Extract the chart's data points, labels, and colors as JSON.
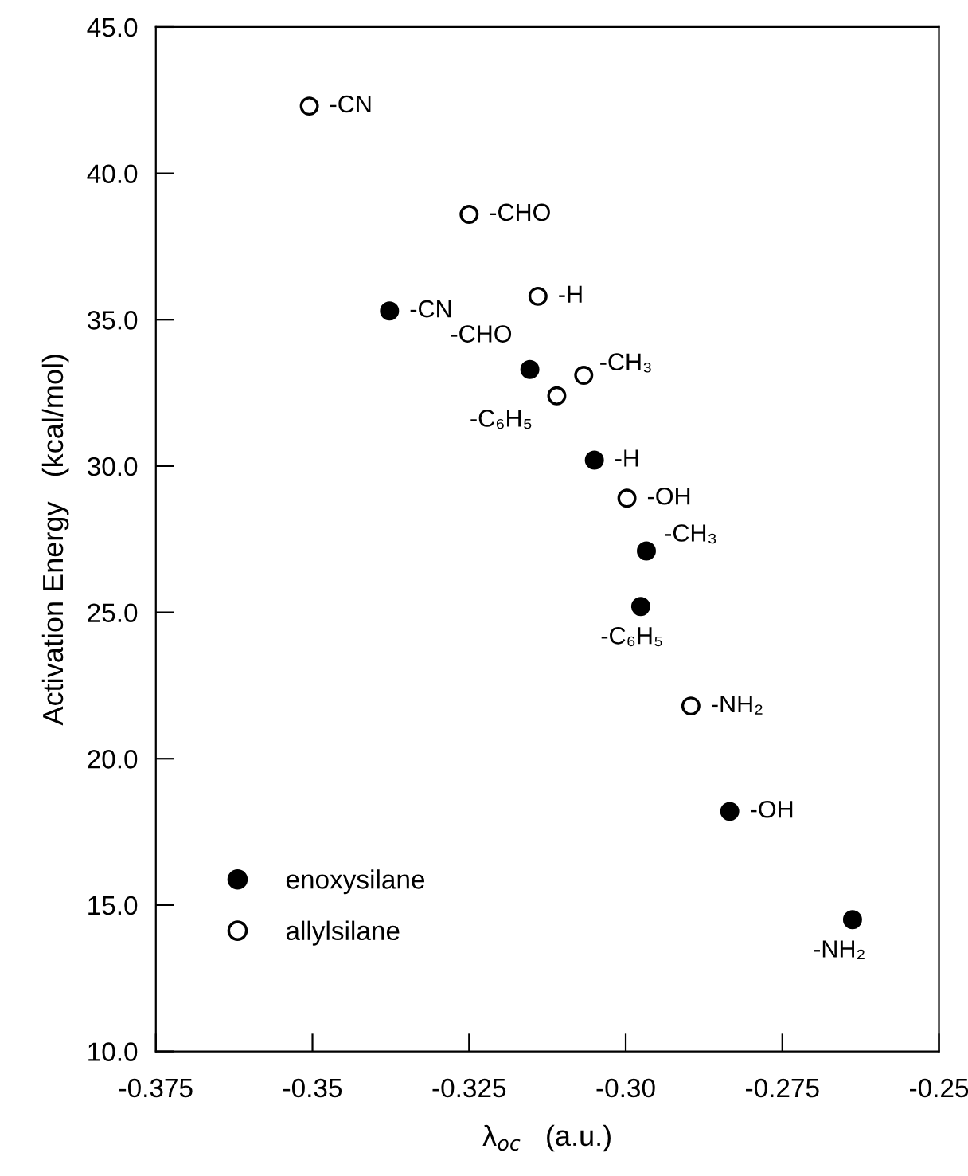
{
  "chart_data": {
    "type": "scatter",
    "xlabel": "λ$_{oc}$   (a.u.)",
    "ylabel": "Activation Energy   (kcal/mol)",
    "series": [
      {
        "name": "enoxysilane",
        "color": "#000000",
        "x": [
          -0.3377,
          -0.3153,
          -0.305,
          -0.2967,
          -0.2976,
          -0.2834,
          -0.2638
        ],
        "values": [
          35.3,
          33.3,
          30.2,
          27.1,
          25.2,
          18.2,
          14.5
        ]
      },
      {
        "name": "allylsilane",
        "color": "#ffffff",
        "x": [
          -0.3505,
          -0.325,
          -0.314,
          -0.3067,
          -0.311,
          -0.2998,
          -0.2896
        ],
        "values": [
          42.3,
          38.6,
          35.8,
          33.1,
          32.4,
          28.9,
          21.8
        ]
      }
    ],
    "annotations": [
      {
        "text": "-CN",
        "x": -0.3377,
        "y": 35.3
      },
      {
        "text": "-CHO",
        "x": -0.3153,
        "y": 33.3
      },
      {
        "text": "-H",
        "x": -0.305,
        "y": 30.2
      },
      {
        "text": "-CH₃",
        "x": -0.2967,
        "y": 27.1
      },
      {
        "text": "-C₆H₅",
        "x": -0.2976,
        "y": 25.2
      },
      {
        "text": "-OH",
        "x": -0.2834,
        "y": 18.2
      },
      {
        "text": "-NH₂",
        "x": -0.2638,
        "y": 14.5
      },
      {
        "text": "-CN",
        "x": -0.3505,
        "y": 42.3
      },
      {
        "text": "-CHO",
        "x": -0.325,
        "y": 38.6
      },
      {
        "text": "-H",
        "x": -0.314,
        "y": 35.8
      },
      {
        "text": "-CH₃",
        "x": -0.3067,
        "y": 33.1
      },
      {
        "text": "-C₆H₅",
        "x": -0.311,
        "y": 32.4
      },
      {
        "text": "-OH",
        "x": -0.2998,
        "y": 28.9
      },
      {
        "text": "-NH₂",
        "x": -0.2896,
        "y": 21.8
      }
    ],
    "xlim": [
      -0.375,
      -0.25
    ],
    "xticks": [
      -0.375,
      -0.35,
      -0.325,
      {
        "value": -0.3,
        "label": "-0.30"
      },
      -0.275,
      -0.25
    ],
    "ylim": [
      10.0,
      45.0
    ],
    "yticks": [
      {
        "value": 10,
        "label": "10.0"
      },
      {
        "value": 15,
        "label": "15.0"
      },
      {
        "value": 20,
        "label": "20.0"
      },
      {
        "value": 25,
        "label": "25.0"
      },
      {
        "value": 30,
        "label": "30.0"
      },
      {
        "value": 35,
        "label": "35.0"
      },
      {
        "value": 40,
        "label": "40.0"
      },
      {
        "value": 45,
        "label": "45.0"
      }
    ],
    "marker": "circle",
    "legend": "bottom left",
    "grid": false
  }
}
